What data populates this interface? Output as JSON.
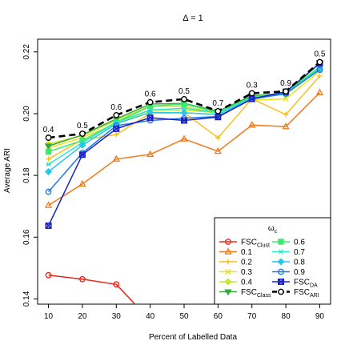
{
  "chart_data": {
    "type": "line",
    "title": "Δ = 1",
    "xlabel": "Percent of Labelled Data",
    "ylabel": "Average ARI",
    "x": [
      10,
      20,
      30,
      40,
      50,
      60,
      70,
      80,
      90
    ],
    "xlim": [
      6.8,
      93.2
    ],
    "ylim": [
      0.1383,
      0.2241
    ],
    "xticks": [
      "10",
      "20",
      "30",
      "40",
      "50",
      "60",
      "70",
      "80",
      "90"
    ],
    "yticks": [
      {
        "value": 0.14,
        "label": "0.14"
      },
      {
        "value": 0.16,
        "label": "0.16"
      },
      {
        "value": 0.18,
        "label": "0.18"
      },
      {
        "value": 0.2,
        "label": "0.20"
      },
      {
        "value": 0.22,
        "label": "0.22"
      }
    ],
    "legend": {
      "placement": "bottom-right",
      "title_base": "ω",
      "title_sub": "c",
      "columns": [
        [
          {
            "series": "clust",
            "label_base": "FSC",
            "label_sub": "Clust"
          },
          {
            "series": "w01",
            "label_base": "0.1",
            "label_sub": ""
          },
          {
            "series": "w02",
            "label_base": "0.2",
            "label_sub": ""
          },
          {
            "series": "w03",
            "label_base": "0.3",
            "label_sub": ""
          },
          {
            "series": "w04",
            "label_base": "0.4",
            "label_sub": ""
          },
          {
            "series": "class",
            "label_base": "FSC",
            "label_sub": "Class"
          }
        ],
        [
          {
            "series": "w06",
            "label_base": "0.6",
            "label_sub": ""
          },
          {
            "series": "w07",
            "label_base": "0.7",
            "label_sub": ""
          },
          {
            "series": "w08",
            "label_base": "0.8",
            "label_sub": ""
          },
          {
            "series": "w09",
            "label_base": "0.9",
            "label_sub": ""
          },
          {
            "series": "da",
            "label_base": "FSC",
            "label_sub": "DA"
          },
          {
            "series": "ari",
            "label_base": "FSC",
            "label_sub": "ARI"
          }
        ]
      ]
    },
    "series": [
      {
        "id": "clust",
        "color": "#e8261c",
        "marker": "circle",
        "values": [
          0.1477,
          0.1464,
          0.1447,
          0.1331,
          null,
          null,
          null,
          null,
          null
        ]
      },
      {
        "id": "w01",
        "color": "#f07a1a",
        "marker": "triangle",
        "values": [
          0.1703,
          0.1772,
          0.1853,
          0.1868,
          0.1918,
          0.1878,
          0.1963,
          0.1958,
          0.2068
        ]
      },
      {
        "id": "w02",
        "color": "#f6c21a",
        "marker": "plus",
        "values": [
          0.1853,
          0.1916,
          0.1932,
          0.2001,
          0.2003,
          0.1922,
          0.2048,
          0.1997,
          0.2122
        ]
      },
      {
        "id": "w03",
        "color": "#eae21a",
        "marker": "x",
        "values": [
          0.1888,
          0.1923,
          0.1967,
          0.2011,
          0.2011,
          0.2003,
          0.2044,
          0.2048,
          0.2138
        ]
      },
      {
        "id": "w04",
        "color": "#c6e830",
        "marker": "diamond",
        "values": [
          0.1902,
          0.1929,
          0.1978,
          0.2025,
          0.2022,
          0.2004,
          0.2052,
          0.2062,
          0.2151
        ]
      },
      {
        "id": "class",
        "color": "#3aa73a",
        "marker": "triangle-down",
        "values": [
          0.1895,
          0.1931,
          0.1983,
          0.2031,
          0.2033,
          0.2008,
          0.2058,
          0.2066,
          0.2163
        ]
      },
      {
        "id": "w06",
        "color": "#3ee86a",
        "marker": "square",
        "values": [
          0.1877,
          0.1913,
          0.1972,
          0.2024,
          0.2031,
          0.2005,
          0.2054,
          0.2067,
          0.2152
        ]
      },
      {
        "id": "w07",
        "color": "#2ee8c4",
        "marker": "asterisk",
        "values": [
          0.1836,
          0.1906,
          0.1972,
          0.2012,
          0.2017,
          0.2003,
          0.2051,
          0.2064,
          0.2148
        ]
      },
      {
        "id": "w08",
        "color": "#26c8e8",
        "marker": "diamond",
        "values": [
          0.1812,
          0.1898,
          0.1967,
          0.2004,
          0.2003,
          0.1997,
          0.2049,
          0.2064,
          0.2144
        ]
      },
      {
        "id": "w09",
        "color": "#1f7ae8",
        "marker": "circle",
        "values": [
          0.1747,
          0.1873,
          0.1961,
          0.1978,
          0.1985,
          0.1991,
          0.2047,
          0.2065,
          0.2142
        ]
      },
      {
        "id": "da",
        "color": "#1b20c8",
        "marker": "xbox",
        "values": [
          0.1637,
          0.1867,
          0.1951,
          0.1987,
          0.1978,
          0.1989,
          0.2048,
          0.2071,
          0.2163
        ]
      },
      {
        "id": "ari",
        "color": "#000000",
        "marker": "open-circle",
        "dashed": true,
        "values": [
          0.1922,
          0.1935,
          0.1995,
          0.2037,
          0.2047,
          0.2008,
          0.2066,
          0.2072,
          0.2167
        ]
      }
    ],
    "annotations": [
      {
        "x": 10,
        "y": 0.1922,
        "text": "0.4"
      },
      {
        "x": 20,
        "y": 0.1935,
        "text": "0.5"
      },
      {
        "x": 30,
        "y": 0.1995,
        "text": "0.6"
      },
      {
        "x": 40,
        "y": 0.2037,
        "text": "0.6"
      },
      {
        "x": 50,
        "y": 0.2047,
        "text": "0.5"
      },
      {
        "x": 60,
        "y": 0.2008,
        "text": "0.7"
      },
      {
        "x": 70,
        "y": 0.2066,
        "text": "0.3"
      },
      {
        "x": 80,
        "y": 0.2072,
        "text": "0.9"
      },
      {
        "x": 90,
        "y": 0.2167,
        "text": "0.5"
      }
    ]
  }
}
